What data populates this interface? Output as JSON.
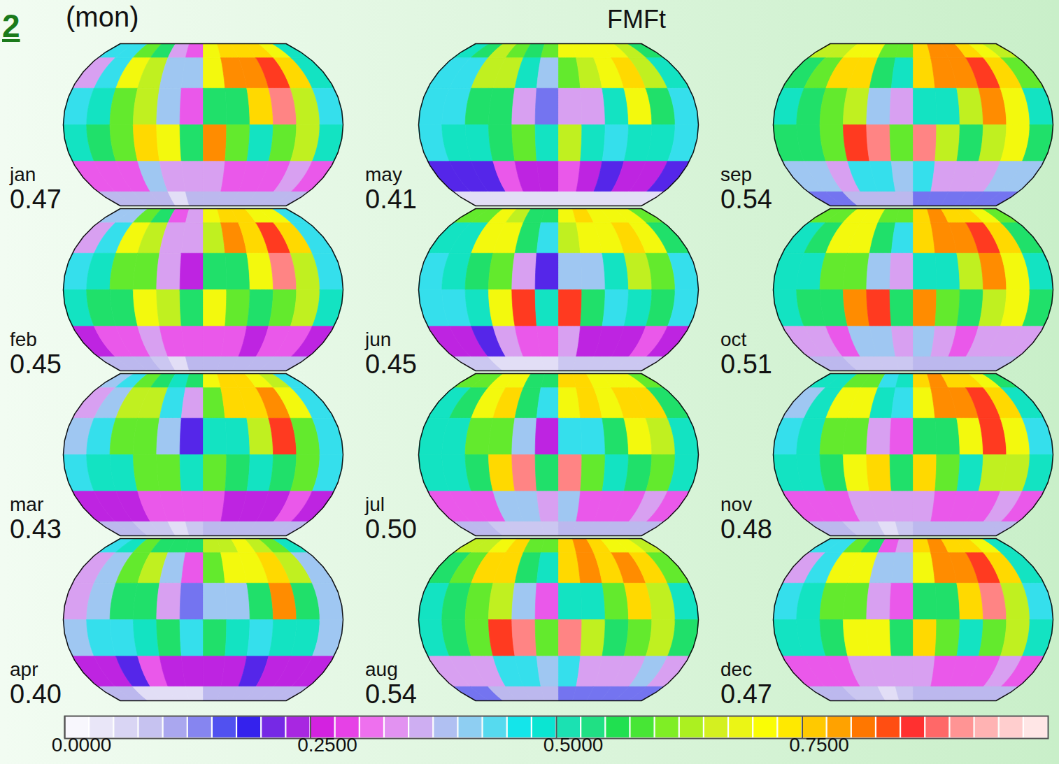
{
  "chart_data": {
    "type": "map",
    "title": "FMFt",
    "subtitle": "(mon)",
    "figure_label": "2",
    "lon_edges": [
      -180,
      -150,
      -120,
      -90,
      -60,
      -30,
      0,
      30,
      60,
      90,
      120,
      150,
      180
    ],
    "lat_edges": [
      90,
      60,
      30,
      0,
      -30,
      -60,
      -90
    ],
    "panels": [
      {
        "month": "jan",
        "mean": {
          "value": 0.47,
          "label": "0.47"
        },
        "cells": [
          [
            0.45,
            0.45,
            0.6,
            0.55,
            0.35,
            0.3,
            0.7,
            0.75,
            0.75,
            0.75,
            0.7,
            0.5
          ],
          [
            0.35,
            0.45,
            0.7,
            0.65,
            0.4,
            0.4,
            0.7,
            0.8,
            0.8,
            0.85,
            0.75,
            0.5
          ],
          [
            0.45,
            0.5,
            0.6,
            0.65,
            0.4,
            0.3,
            0.55,
            0.55,
            0.75,
            0.9,
            0.65,
            0.45
          ],
          [
            0.5,
            0.55,
            0.6,
            0.75,
            0.7,
            0.55,
            0.8,
            0.6,
            0.5,
            0.6,
            0.65,
            0.5
          ],
          [
            0.3,
            0.3,
            0.3,
            0.4,
            0.35,
            0.35,
            0.35,
            0.3,
            0.3,
            0.3,
            0.35,
            0.3
          ],
          [
            0.1,
            0.1,
            0.1,
            0.1,
            0.05,
            0.1,
            0.1,
            0.1,
            0.1,
            0.1,
            0.1,
            0.1
          ]
        ]
      },
      {
        "month": "feb",
        "mean": {
          "value": 0.45,
          "label": "0.45"
        },
        "cells": [
          [
            0.4,
            0.4,
            0.6,
            0.55,
            0.3,
            0.35,
            0.7,
            0.75,
            0.75,
            0.7,
            0.7,
            0.45
          ],
          [
            0.35,
            0.45,
            0.7,
            0.65,
            0.35,
            0.35,
            0.65,
            0.8,
            0.75,
            0.85,
            0.75,
            0.45
          ],
          [
            0.45,
            0.5,
            0.6,
            0.6,
            0.35,
            0.25,
            0.55,
            0.55,
            0.7,
            0.9,
            0.65,
            0.45
          ],
          [
            0.5,
            0.55,
            0.55,
            0.7,
            0.65,
            0.55,
            0.7,
            0.6,
            0.55,
            0.6,
            0.65,
            0.5
          ],
          [
            0.25,
            0.3,
            0.3,
            0.35,
            0.3,
            0.3,
            0.3,
            0.3,
            0.25,
            0.3,
            0.3,
            0.25
          ],
          [
            0.1,
            0.1,
            0.1,
            0.08,
            0.05,
            0.1,
            0.1,
            0.1,
            0.1,
            0.1,
            0.1,
            0.1
          ]
        ]
      },
      {
        "month": "mar",
        "mean": {
          "value": 0.43,
          "label": "0.43"
        },
        "cells": [
          [
            0.4,
            0.45,
            0.6,
            0.55,
            0.5,
            0.55,
            0.7,
            0.75,
            0.75,
            0.7,
            0.65,
            0.45
          ],
          [
            0.35,
            0.4,
            0.65,
            0.65,
            0.45,
            0.35,
            0.6,
            0.75,
            0.75,
            0.8,
            0.7,
            0.45
          ],
          [
            0.4,
            0.45,
            0.6,
            0.6,
            0.4,
            0.2,
            0.5,
            0.5,
            0.65,
            0.85,
            0.6,
            0.45
          ],
          [
            0.45,
            0.5,
            0.5,
            0.6,
            0.6,
            0.5,
            0.6,
            0.55,
            0.5,
            0.55,
            0.6,
            0.45
          ],
          [
            0.25,
            0.25,
            0.25,
            0.3,
            0.3,
            0.3,
            0.3,
            0.25,
            0.25,
            0.25,
            0.3,
            0.25
          ],
          [
            0.1,
            0.1,
            0.08,
            0.08,
            0.05,
            0.08,
            0.1,
            0.1,
            0.1,
            0.1,
            0.1,
            0.1
          ]
        ]
      },
      {
        "month": "apr",
        "mean": {
          "value": 0.4,
          "label": "0.40"
        },
        "cells": [
          [
            0.45,
            0.5,
            0.6,
            0.55,
            0.55,
            0.55,
            0.65,
            0.65,
            0.7,
            0.65,
            0.6,
            0.5
          ],
          [
            0.35,
            0.4,
            0.6,
            0.65,
            0.4,
            0.3,
            0.6,
            0.7,
            0.7,
            0.75,
            0.65,
            0.4
          ],
          [
            0.35,
            0.4,
            0.55,
            0.55,
            0.35,
            0.15,
            0.4,
            0.4,
            0.55,
            0.8,
            0.55,
            0.4
          ],
          [
            0.4,
            0.45,
            0.45,
            0.5,
            0.55,
            0.45,
            0.55,
            0.5,
            0.45,
            0.5,
            0.5,
            0.4
          ],
          [
            0.25,
            0.25,
            0.2,
            0.3,
            0.25,
            0.25,
            0.25,
            0.25,
            0.2,
            0.25,
            0.25,
            0.25
          ],
          [
            0.1,
            0.1,
            0.05,
            0.05,
            0.05,
            0.05,
            0.1,
            0.1,
            0.1,
            0.1,
            0.1,
            0.1
          ]
        ]
      },
      {
        "month": "may",
        "mean": {
          "value": 0.41,
          "label": "0.41"
        },
        "cells": [
          [
            0.5,
            0.55,
            0.65,
            0.6,
            0.55,
            0.6,
            0.7,
            0.7,
            0.7,
            0.7,
            0.65,
            0.55
          ],
          [
            0.45,
            0.45,
            0.65,
            0.65,
            0.5,
            0.4,
            0.6,
            0.65,
            0.7,
            0.75,
            0.65,
            0.5
          ],
          [
            0.45,
            0.45,
            0.55,
            0.55,
            0.35,
            0.15,
            0.35,
            0.35,
            0.5,
            0.7,
            0.55,
            0.45
          ],
          [
            0.45,
            0.5,
            0.5,
            0.55,
            0.6,
            0.5,
            0.65,
            0.5,
            0.45,
            0.5,
            0.5,
            0.45
          ],
          [
            0.2,
            0.2,
            0.2,
            0.3,
            0.25,
            0.25,
            0.3,
            0.25,
            0.2,
            0.25,
            0.25,
            0.2
          ],
          [
            0.05,
            0.05,
            0.05,
            0.05,
            0.05,
            0.05,
            0.05,
            0.05,
            0.05,
            0.05,
            0.05,
            0.05
          ]
        ]
      },
      {
        "month": "jun",
        "mean": {
          "value": 0.45,
          "label": "0.45"
        },
        "cells": [
          [
            0.6,
            0.6,
            0.7,
            0.65,
            0.55,
            0.55,
            0.7,
            0.75,
            0.7,
            0.7,
            0.7,
            0.6
          ],
          [
            0.5,
            0.5,
            0.7,
            0.7,
            0.55,
            0.45,
            0.65,
            0.7,
            0.7,
            0.75,
            0.7,
            0.55
          ],
          [
            0.45,
            0.5,
            0.55,
            0.6,
            0.35,
            0.2,
            0.4,
            0.4,
            0.5,
            0.65,
            0.6,
            0.45
          ],
          [
            0.45,
            0.45,
            0.5,
            0.7,
            0.85,
            0.5,
            0.85,
            0.55,
            0.45,
            0.5,
            0.55,
            0.45
          ],
          [
            0.25,
            0.25,
            0.2,
            0.35,
            0.3,
            0.3,
            0.35,
            0.25,
            0.25,
            0.25,
            0.3,
            0.25
          ],
          [
            0.08,
            0.08,
            0.05,
            0.05,
            0.05,
            0.05,
            0.08,
            0.08,
            0.08,
            0.08,
            0.08,
            0.08
          ]
        ]
      },
      {
        "month": "jul",
        "mean": {
          "value": 0.5,
          "label": "0.50"
        },
        "cells": [
          [
            0.6,
            0.6,
            0.7,
            0.7,
            0.55,
            0.55,
            0.75,
            0.75,
            0.7,
            0.7,
            0.7,
            0.6
          ],
          [
            0.5,
            0.55,
            0.7,
            0.75,
            0.55,
            0.45,
            0.7,
            0.75,
            0.7,
            0.75,
            0.75,
            0.55
          ],
          [
            0.5,
            0.5,
            0.6,
            0.6,
            0.4,
            0.25,
            0.45,
            0.45,
            0.55,
            0.7,
            0.65,
            0.5
          ],
          [
            0.5,
            0.5,
            0.55,
            0.75,
            0.9,
            0.55,
            0.9,
            0.6,
            0.5,
            0.55,
            0.6,
            0.5
          ],
          [
            0.3,
            0.3,
            0.3,
            0.4,
            0.4,
            0.35,
            0.4,
            0.3,
            0.3,
            0.3,
            0.35,
            0.3
          ],
          [
            0.1,
            0.1,
            0.08,
            0.08,
            0.08,
            0.08,
            0.1,
            0.1,
            0.1,
            0.1,
            0.1,
            0.1
          ]
        ]
      },
      {
        "month": "aug",
        "mean": {
          "value": 0.54,
          "label": "0.54"
        },
        "cells": [
          [
            0.65,
            0.65,
            0.7,
            0.75,
            0.6,
            0.6,
            0.75,
            0.8,
            0.75,
            0.7,
            0.7,
            0.65
          ],
          [
            0.55,
            0.6,
            0.75,
            0.75,
            0.55,
            0.5,
            0.75,
            0.8,
            0.75,
            0.8,
            0.75,
            0.6
          ],
          [
            0.5,
            0.55,
            0.6,
            0.65,
            0.4,
            0.3,
            0.5,
            0.5,
            0.6,
            0.75,
            0.65,
            0.5
          ],
          [
            0.5,
            0.55,
            0.6,
            0.85,
            0.9,
            0.6,
            0.9,
            0.65,
            0.55,
            0.6,
            0.65,
            0.55
          ],
          [
            0.35,
            0.35,
            0.35,
            0.45,
            0.45,
            0.4,
            0.45,
            0.35,
            0.35,
            0.35,
            0.4,
            0.35
          ],
          [
            0.15,
            0.15,
            0.1,
            0.1,
            0.1,
            0.1,
            0.15,
            0.15,
            0.15,
            0.15,
            0.15,
            0.15
          ]
        ]
      },
      {
        "month": "sep",
        "mean": {
          "value": 0.54,
          "label": "0.54"
        },
        "cells": [
          [
            0.65,
            0.65,
            0.7,
            0.7,
            0.6,
            0.6,
            0.75,
            0.8,
            0.8,
            0.75,
            0.7,
            0.65
          ],
          [
            0.55,
            0.6,
            0.75,
            0.75,
            0.55,
            0.5,
            0.75,
            0.8,
            0.8,
            0.85,
            0.75,
            0.6
          ],
          [
            0.5,
            0.55,
            0.6,
            0.65,
            0.4,
            0.35,
            0.5,
            0.5,
            0.65,
            0.8,
            0.7,
            0.5
          ],
          [
            0.55,
            0.55,
            0.6,
            0.85,
            0.9,
            0.6,
            0.9,
            0.65,
            0.55,
            0.65,
            0.7,
            0.55
          ],
          [
            0.4,
            0.4,
            0.35,
            0.45,
            0.45,
            0.4,
            0.45,
            0.35,
            0.35,
            0.35,
            0.4,
            0.4
          ],
          [
            0.15,
            0.15,
            0.1,
            0.1,
            0.1,
            0.1,
            0.15,
            0.15,
            0.15,
            0.15,
            0.15,
            0.15
          ]
        ]
      },
      {
        "month": "oct",
        "mean": {
          "value": 0.51,
          "label": "0.51"
        },
        "cells": [
          [
            0.6,
            0.6,
            0.7,
            0.7,
            0.6,
            0.6,
            0.75,
            0.8,
            0.75,
            0.75,
            0.7,
            0.6
          ],
          [
            0.5,
            0.55,
            0.7,
            0.7,
            0.55,
            0.45,
            0.75,
            0.8,
            0.8,
            0.85,
            0.75,
            0.55
          ],
          [
            0.5,
            0.5,
            0.6,
            0.6,
            0.4,
            0.35,
            0.5,
            0.5,
            0.65,
            0.8,
            0.7,
            0.5
          ],
          [
            0.5,
            0.55,
            0.55,
            0.8,
            0.85,
            0.55,
            0.8,
            0.6,
            0.55,
            0.65,
            0.7,
            0.55
          ],
          [
            0.35,
            0.35,
            0.3,
            0.4,
            0.4,
            0.35,
            0.4,
            0.35,
            0.3,
            0.35,
            0.35,
            0.35
          ],
          [
            0.1,
            0.1,
            0.08,
            0.08,
            0.08,
            0.08,
            0.1,
            0.1,
            0.1,
            0.1,
            0.1,
            0.1
          ]
        ]
      },
      {
        "month": "nov",
        "mean": {
          "value": 0.48,
          "label": "0.48"
        },
        "cells": [
          [
            0.5,
            0.5,
            0.6,
            0.6,
            0.45,
            0.5,
            0.75,
            0.8,
            0.75,
            0.75,
            0.7,
            0.55
          ],
          [
            0.4,
            0.5,
            0.7,
            0.7,
            0.5,
            0.45,
            0.7,
            0.8,
            0.8,
            0.85,
            0.75,
            0.5
          ],
          [
            0.45,
            0.5,
            0.6,
            0.6,
            0.35,
            0.3,
            0.55,
            0.55,
            0.7,
            0.85,
            0.7,
            0.45
          ],
          [
            0.5,
            0.5,
            0.55,
            0.7,
            0.75,
            0.55,
            0.75,
            0.6,
            0.5,
            0.65,
            0.65,
            0.5
          ],
          [
            0.3,
            0.3,
            0.3,
            0.35,
            0.35,
            0.35,
            0.35,
            0.3,
            0.3,
            0.3,
            0.35,
            0.3
          ],
          [
            0.1,
            0.1,
            0.08,
            0.08,
            0.05,
            0.08,
            0.1,
            0.1,
            0.1,
            0.1,
            0.1,
            0.1
          ]
        ]
      },
      {
        "month": "dec",
        "mean": {
          "value": 0.47,
          "label": "0.47"
        },
        "cells": [
          [
            0.45,
            0.45,
            0.6,
            0.55,
            0.3,
            0.35,
            0.75,
            0.8,
            0.75,
            0.75,
            0.7,
            0.5
          ],
          [
            0.35,
            0.45,
            0.7,
            0.7,
            0.4,
            0.4,
            0.7,
            0.8,
            0.8,
            0.85,
            0.75,
            0.5
          ],
          [
            0.45,
            0.5,
            0.6,
            0.6,
            0.35,
            0.3,
            0.55,
            0.55,
            0.75,
            0.9,
            0.65,
            0.45
          ],
          [
            0.5,
            0.5,
            0.55,
            0.7,
            0.7,
            0.55,
            0.75,
            0.6,
            0.5,
            0.6,
            0.65,
            0.5
          ],
          [
            0.3,
            0.3,
            0.3,
            0.35,
            0.35,
            0.35,
            0.35,
            0.3,
            0.3,
            0.3,
            0.35,
            0.3
          ],
          [
            0.1,
            0.1,
            0.08,
            0.08,
            0.05,
            0.08,
            0.1,
            0.1,
            0.1,
            0.1,
            0.1,
            0.1
          ]
        ]
      }
    ],
    "colorbar": {
      "range": [
        0,
        1
      ],
      "ticks": [
        {
          "value": 0,
          "label": "0.0000"
        },
        {
          "value": 0.25,
          "label": "0.2500"
        },
        {
          "value": 0.5,
          "label": "0.5000"
        },
        {
          "value": 0.75,
          "label": "0.7500"
        }
      ]
    }
  }
}
